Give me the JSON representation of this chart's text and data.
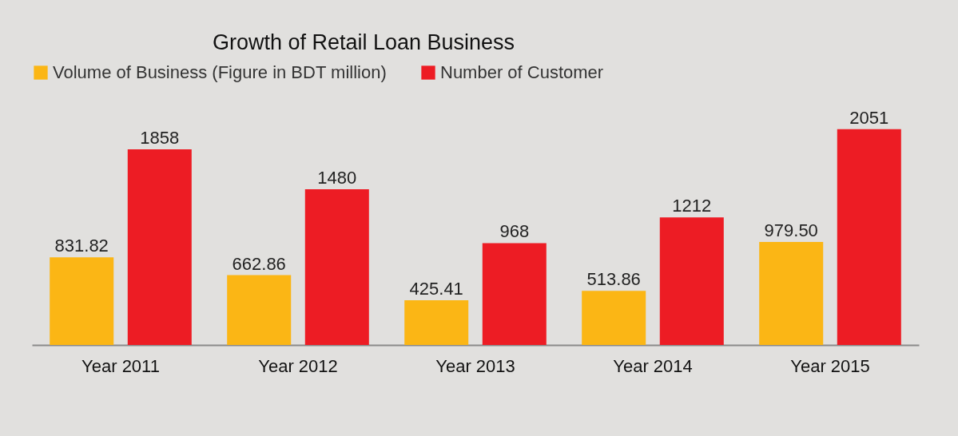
{
  "chart_data": {
    "type": "bar",
    "title": "Growth of Retail Loan Business",
    "categories": [
      "Year 2011",
      "Year 2012",
      "Year 2013",
      "Year 2014",
      "Year 2015"
    ],
    "series": [
      {
        "name": "Volume of Business (Figure in BDT million)",
        "color": "#fbb615",
        "values": [
          831.82,
          662.86,
          425.41,
          513.86,
          979.5
        ],
        "value_labels": [
          "831.82",
          "662.86",
          "425.41",
          "513.86",
          "979.50"
        ]
      },
      {
        "name": "Number of Customer",
        "color": "#ed1c24",
        "values": [
          1858,
          1480,
          968,
          1212,
          2051
        ],
        "value_labels": [
          "1858",
          "1480",
          "968",
          "1212",
          "2051"
        ]
      }
    ],
    "legend": "top",
    "tick_labels": "x"
  }
}
